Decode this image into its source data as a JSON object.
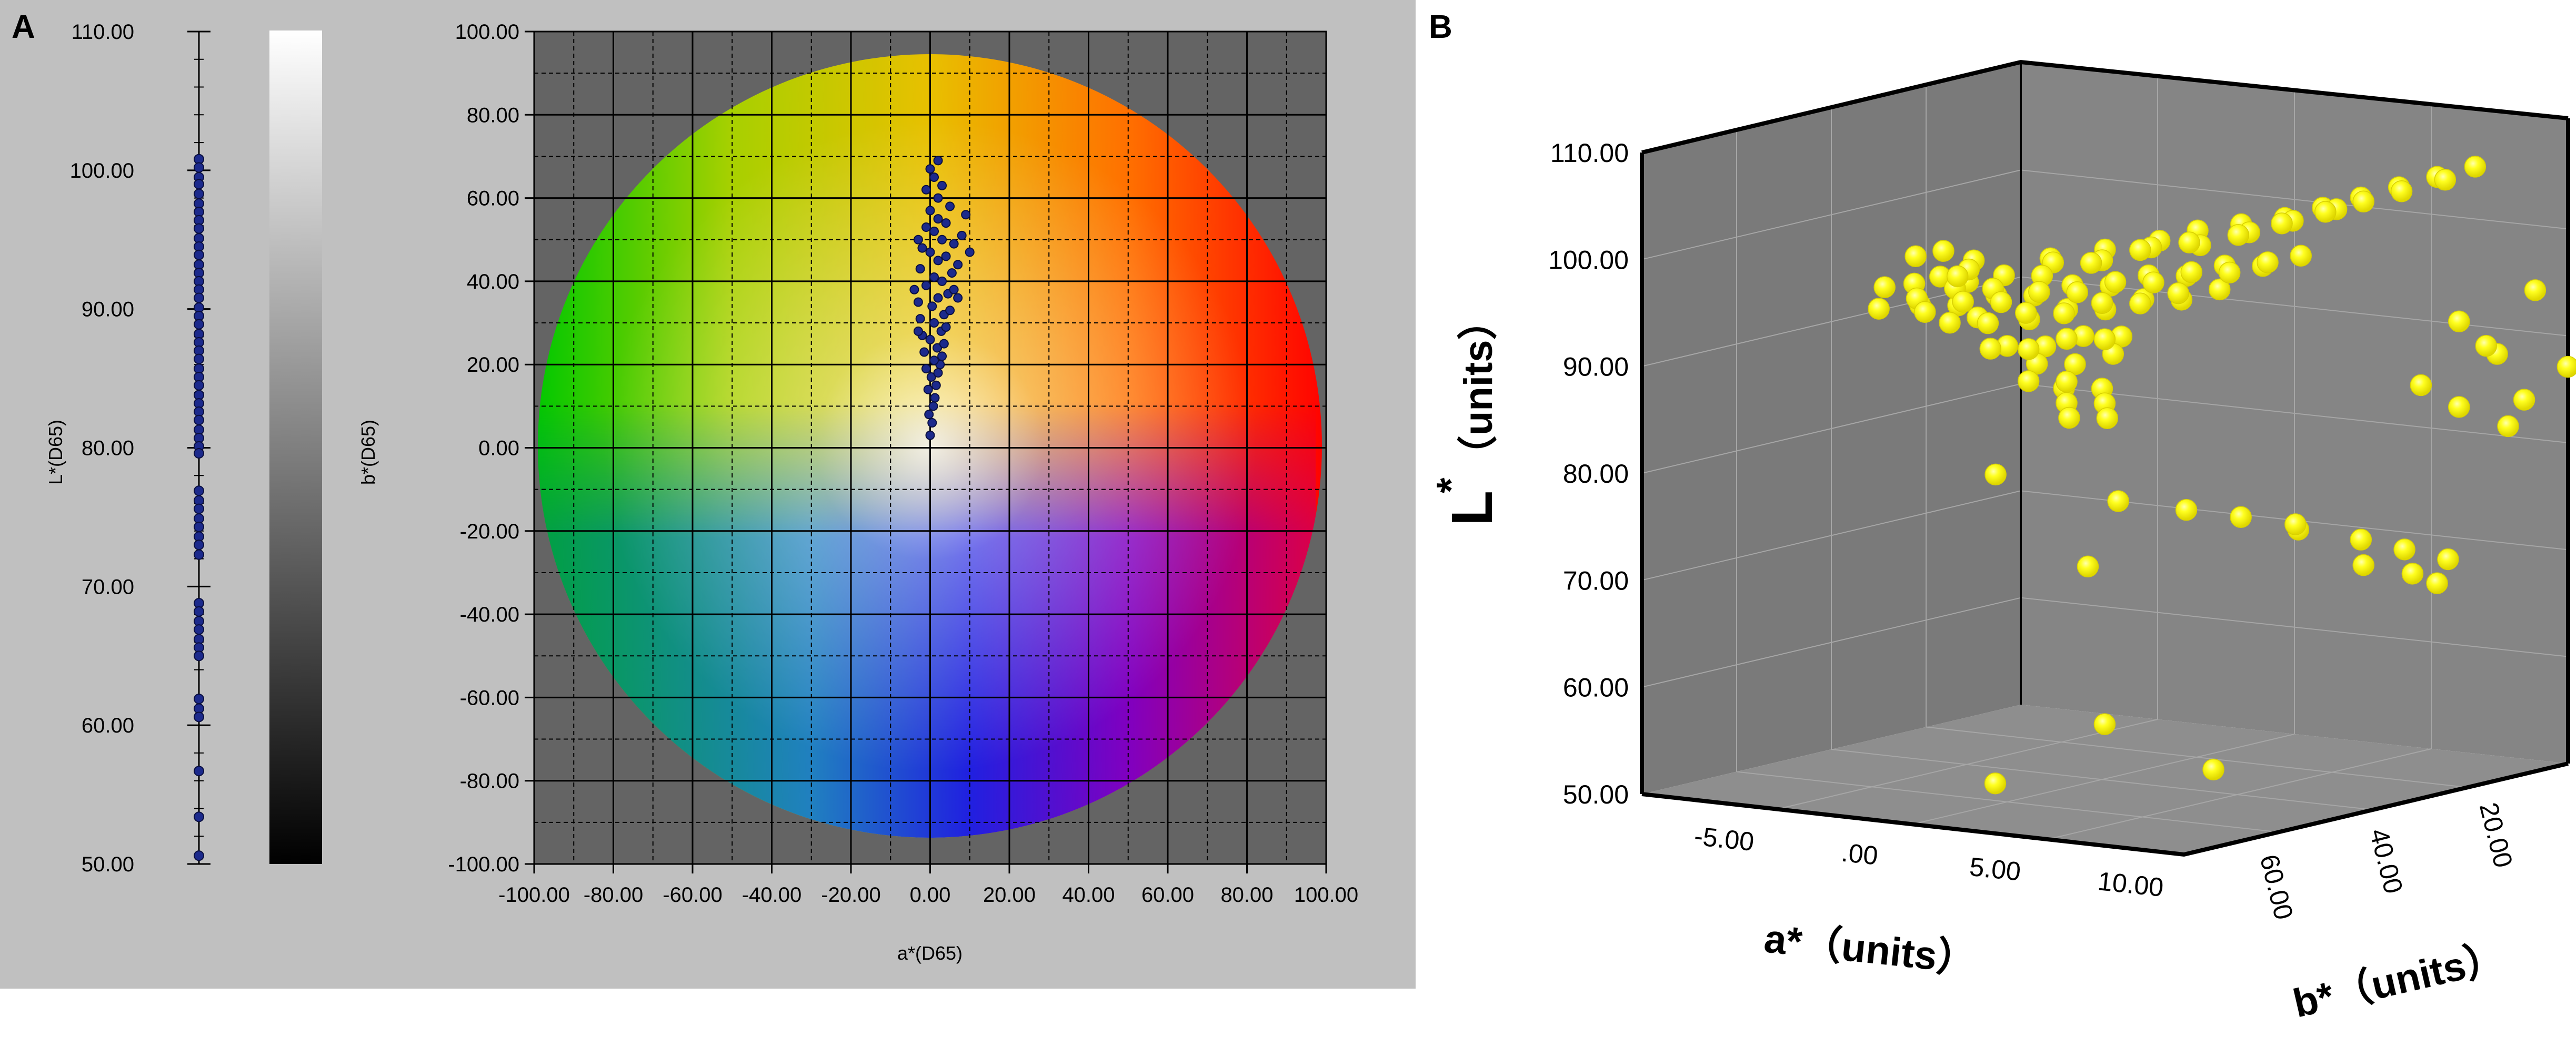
{
  "panels": {
    "a": {
      "letter": "A",
      "lightness_axis": {
        "label": "L*(D65)",
        "ticks": [
          "110.00",
          "100.00",
          "90.00",
          "80.00",
          "70.00",
          "60.00",
          "50.00"
        ],
        "range": [
          50,
          110
        ],
        "points": [
          100.8,
          100.2,
          99.5,
          99.0,
          98.3,
          97.6,
          97.0,
          96.4,
          95.8,
          95.1,
          94.5,
          93.9,
          93.2,
          92.6,
          92.0,
          91.4,
          90.8,
          90.1,
          89.5,
          88.9,
          88.2,
          87.6,
          87.0,
          86.4,
          85.7,
          85.1,
          84.5,
          83.8,
          83.2,
          82.6,
          82.0,
          81.3,
          80.7,
          80.1,
          79.6,
          76.9,
          76.2,
          75.6,
          74.9,
          74.3,
          73.6,
          73.0,
          72.3,
          68.8,
          68.2,
          67.5,
          66.9,
          66.2,
          65.6,
          65.0,
          61.9,
          61.2,
          60.6,
          56.7,
          53.4,
          50.6
        ]
      },
      "b_gradient": {
        "label": "b*(D65)"
      },
      "ab_plane": {
        "xlabel": "a*(D65)",
        "ylabel": "b*(D65)",
        "x_ticks": [
          "-100.00",
          "-80.00",
          "-60.00",
          "-40.00",
          "-20.00",
          "0.00",
          "20.00",
          "40.00",
          "60.00",
          "80.00",
          "100.00"
        ],
        "y_ticks": [
          "100.00",
          "80.00",
          "60.00",
          "40.00",
          "20.00",
          "0.00",
          "-20.00",
          "-40.00",
          "-60.00",
          "-80.00",
          "-100.00"
        ],
        "range": [
          -100,
          100
        ]
      }
    },
    "b": {
      "letter": "B",
      "l_ticks": [
        "110.00",
        "100.00",
        "90.00",
        "80.00",
        "70.00",
        "60.00",
        "50.00"
      ],
      "a_ticks": [
        "-5.00",
        ".00",
        "5.00",
        "10.00"
      ],
      "b_ticks": [
        ".00",
        "20.00",
        "40.00",
        "60.00"
      ],
      "l_label_main": "L",
      "l_label_sup": "*",
      "l_label_units": "（units）",
      "a_label": "a*（units）",
      "b_label": "b*（units）"
    }
  },
  "chart_data": [
    {
      "type": "scatter",
      "title": "",
      "xlabel": "a*(D65)",
      "ylabel": "b*(D65)",
      "xlim": [
        -100,
        100
      ],
      "ylim": [
        -100,
        100
      ],
      "grid": true,
      "description_of_series": "sample chromaticity (a*, b*)",
      "points": [
        [
          0,
          3
        ],
        [
          0.5,
          6
        ],
        [
          -0.3,
          8
        ],
        [
          0.8,
          10
        ],
        [
          1.2,
          12
        ],
        [
          -0.5,
          14
        ],
        [
          1.5,
          15
        ],
        [
          0.3,
          17
        ],
        [
          2,
          18
        ],
        [
          -1,
          19
        ],
        [
          2.5,
          20
        ],
        [
          1,
          21
        ],
        [
          3,
          22
        ],
        [
          -1.5,
          23
        ],
        [
          1.8,
          24
        ],
        [
          3.5,
          25
        ],
        [
          0,
          26
        ],
        [
          -2,
          27
        ],
        [
          2.8,
          28
        ],
        [
          4,
          29
        ],
        [
          1,
          30
        ],
        [
          -2.5,
          31
        ],
        [
          3.5,
          32
        ],
        [
          5,
          33
        ],
        [
          0.5,
          34
        ],
        [
          -3,
          35
        ],
        [
          2,
          36
        ],
        [
          4.5,
          37
        ],
        [
          6,
          38
        ],
        [
          -1,
          39
        ],
        [
          3,
          40
        ],
        [
          1,
          41
        ],
        [
          5.5,
          42
        ],
        [
          -2.5,
          43
        ],
        [
          7,
          44
        ],
        [
          2,
          45
        ],
        [
          4,
          46
        ],
        [
          0,
          47
        ],
        [
          -2,
          48
        ],
        [
          6,
          49
        ],
        [
          3,
          50
        ],
        [
          8,
          51
        ],
        [
          1,
          52
        ],
        [
          -1,
          53
        ],
        [
          4,
          54
        ],
        [
          2,
          55
        ],
        [
          9,
          56
        ],
        [
          0,
          57
        ],
        [
          5,
          58
        ],
        [
          2,
          60
        ],
        [
          -1,
          62
        ],
        [
          3,
          63
        ],
        [
          1,
          65
        ],
        [
          0,
          67
        ],
        [
          2,
          69
        ],
        [
          -3,
          50
        ],
        [
          10,
          47
        ],
        [
          -4,
          38
        ],
        [
          7,
          36
        ],
        [
          -3,
          28
        ]
      ]
    },
    {
      "type": "scatter",
      "subtype": "scatter3d",
      "title": "",
      "xlabel": "a*（units）",
      "ylabel": "b*（units）",
      "zlabel": "L*（units）",
      "xlim": [
        -8,
        12
      ],
      "ylim": [
        0,
        70
      ],
      "zlim": [
        50,
        110
      ],
      "description_of_series": "sample color (a*, b*, L*)",
      "points": [
        [
          -3.5,
          48,
          96
        ],
        [
          -2,
          50,
          97
        ],
        [
          -1,
          45,
          98
        ],
        [
          0,
          52,
          98.5
        ],
        [
          1,
          40,
          99
        ],
        [
          2,
          35,
          99.5
        ],
        [
          3,
          30,
          100
        ],
        [
          4,
          28,
          101
        ],
        [
          5,
          25,
          101.5
        ],
        [
          6,
          22,
          102
        ],
        [
          7,
          20,
          103
        ],
        [
          8,
          18,
          104
        ],
        [
          9,
          16,
          105
        ],
        [
          10,
          14,
          106
        ],
        [
          11,
          12,
          107
        ],
        [
          0.5,
          48,
          97
        ],
        [
          1.5,
          44,
          98
        ],
        [
          2.5,
          40,
          99
        ],
        [
          3.5,
          36,
          100
        ],
        [
          4.5,
          32,
          100.5
        ],
        [
          5.5,
          28,
          101
        ],
        [
          6.5,
          25,
          102
        ],
        [
          7.5,
          22,
          103
        ],
        [
          8.5,
          20,
          104
        ],
        [
          9.5,
          18,
          105
        ],
        [
          10.5,
          15,
          106
        ],
        [
          -1.5,
          52,
          96
        ],
        [
          -0.5,
          50,
          97
        ],
        [
          0.5,
          46,
          98
        ],
        [
          1.5,
          42,
          99
        ],
        [
          2.5,
          38,
          99
        ],
        [
          3.5,
          34,
          100
        ],
        [
          4.5,
          30,
          100
        ],
        [
          5.5,
          26,
          101
        ],
        [
          6.5,
          23,
          102
        ],
        [
          7.5,
          20,
          103
        ],
        [
          -2.5,
          54,
          95
        ],
        [
          -1,
          53,
          95
        ],
        [
          0,
          51,
          96
        ],
        [
          1,
          49,
          96
        ],
        [
          2,
          47,
          97
        ],
        [
          3,
          45,
          97
        ],
        [
          4,
          43,
          98
        ],
        [
          5,
          41,
          98
        ],
        [
          6,
          39,
          99
        ],
        [
          7,
          37,
          99
        ],
        [
          8,
          35,
          100
        ],
        [
          -3,
          44,
          94
        ],
        [
          -2,
          42,
          94
        ],
        [
          -1,
          40,
          95
        ],
        [
          0,
          38,
          95
        ],
        [
          1,
          36,
          96
        ],
        [
          2,
          34,
          96
        ],
        [
          3,
          32,
          97
        ],
        [
          4,
          30,
          97
        ],
        [
          5,
          28,
          98
        ],
        [
          6,
          26,
          98
        ],
        [
          7,
          24,
          99
        ],
        [
          -1.5,
          46,
          93
        ],
        [
          -0.5,
          44,
          93
        ],
        [
          0.5,
          42,
          94
        ],
        [
          1.5,
          40,
          94
        ],
        [
          2.5,
          38,
          95
        ],
        [
          3.5,
          36,
          95
        ],
        [
          4.5,
          34,
          96
        ],
        [
          -2.5,
          36,
          92
        ],
        [
          -1,
          34,
          92
        ],
        [
          0,
          32,
          93
        ],
        [
          1,
          30,
          93
        ],
        [
          2,
          28,
          94
        ],
        [
          3,
          26,
          94
        ],
        [
          4,
          24,
          95
        ],
        [
          0,
          46,
          91
        ],
        [
          1,
          44,
          91
        ],
        [
          2,
          42,
          92
        ],
        [
          3,
          40,
          92
        ],
        [
          -1,
          38,
          90
        ],
        [
          0,
          36,
          90
        ],
        [
          1,
          34,
          91
        ],
        [
          2,
          32,
          91
        ],
        [
          0.5,
          40,
          89
        ],
        [
          1.5,
          38,
          89
        ],
        [
          2.5,
          36,
          90
        ],
        [
          1,
          44,
          88
        ],
        [
          2,
          42,
          88
        ],
        [
          1.5,
          40,
          87
        ],
        [
          2.5,
          38,
          87
        ],
        [
          2,
          42,
          86
        ],
        [
          3,
          40,
          86
        ],
        [
          2.5,
          44,
          85
        ],
        [
          3.5,
          42,
          85
        ],
        [
          -6,
          30,
          96
        ],
        [
          -7,
          20,
          95
        ],
        [
          -5.5,
          28,
          94
        ],
        [
          -7.5,
          12,
          93
        ],
        [
          -6.5,
          18,
          92
        ],
        [
          1,
          50,
          80
        ],
        [
          3.5,
          40,
          77
        ],
        [
          5,
          35,
          76
        ],
        [
          6,
          30,
          75
        ],
        [
          7,
          25,
          74
        ],
        [
          6.5,
          22,
          73
        ],
        [
          8,
          18,
          72
        ],
        [
          9,
          15,
          71
        ],
        [
          10,
          12,
          70
        ],
        [
          8.5,
          20,
          70
        ],
        [
          9.5,
          16,
          69
        ],
        [
          10,
          14,
          68
        ],
        [
          4,
          48,
          72
        ],
        [
          12,
          8,
          85
        ],
        [
          13,
          5,
          88
        ],
        [
          11,
          10,
          90
        ],
        [
          12,
          6,
          95
        ],
        [
          10,
          10,
          92
        ],
        [
          11,
          8,
          89
        ],
        [
          9,
          12,
          86
        ],
        [
          10,
          10,
          84
        ],
        [
          11,
          6,
          82
        ],
        [
          3,
          40,
          56
        ],
        [
          6,
          35,
          52
        ],
        [
          2,
          55,
          52
        ]
      ]
    }
  ],
  "colors": {
    "panel_a_bg": "#c0c0c0",
    "plot_bg": "#646464",
    "sample_marker": "#1c2a8c",
    "sample_marker_edge": "#0a0f40",
    "cube_face": "#7d7d7d",
    "cube_floor": "#888888",
    "point_3d": "#ffff00"
  }
}
